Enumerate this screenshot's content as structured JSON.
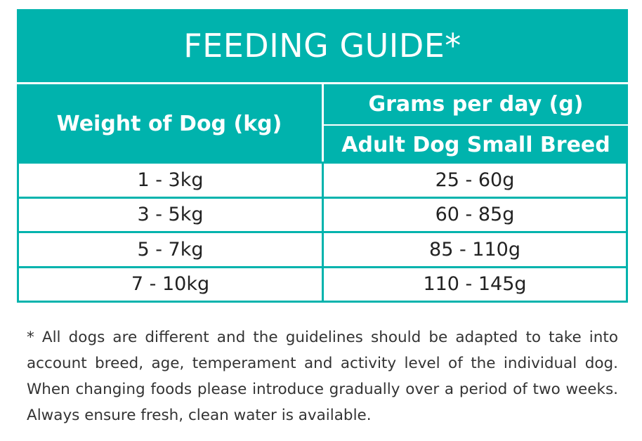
{
  "title": "FEEDING GUIDE*",
  "headers": {
    "weight": "Weight of Dog (kg)",
    "grams": "Grams per day (g)",
    "breed": "Adult Dog Small Breed"
  },
  "rows": [
    {
      "weight": "1 - 3kg",
      "grams": "25 - 60g"
    },
    {
      "weight": "3 - 5kg",
      "grams": "60 - 85g"
    },
    {
      "weight": "5 - 7kg",
      "grams": "85 - 110g"
    },
    {
      "weight": "7 - 10kg",
      "grams": "110 - 145g"
    }
  ],
  "footnote": "* All dogs are different and the guidelines should be adapted to take into account breed, age, temperament and activity level of the individual dog. When changing foods please introduce gradually over a period of two weeks. Always ensure fresh, clean water is available.",
  "colors": {
    "accent": "#00b3ad"
  }
}
